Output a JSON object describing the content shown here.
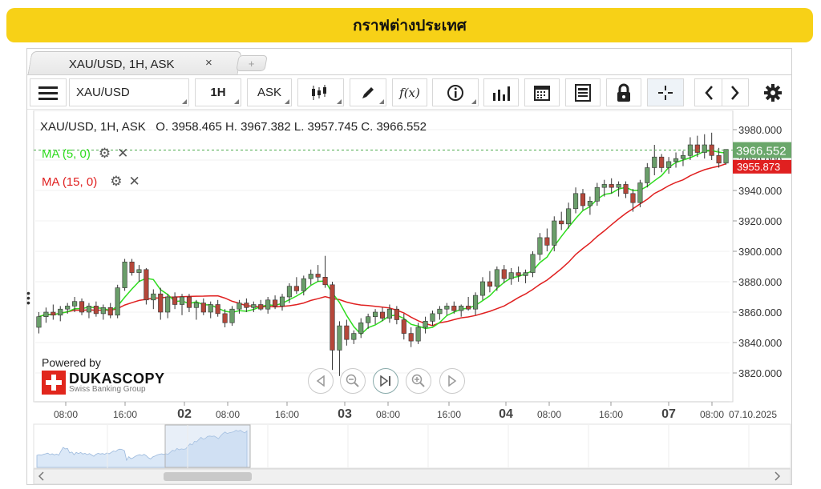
{
  "banner": {
    "title": "กราฟต่างประเทศ"
  },
  "tab": {
    "label": "XAU/USD, 1H, ASK",
    "close": "×",
    "add": "+"
  },
  "toolbar": {
    "symbol": "XAU/USD",
    "period": "1H",
    "side": "ASK",
    "fx_label": "f(x)"
  },
  "header": {
    "instrument": "XAU/USD, 1H, ASK",
    "ohlc": "O. 3958.465 H. 3967.382 L. 3957.745 C. 3966.552"
  },
  "indicators": [
    {
      "label": "MA (5, 0)",
      "color": "#2fdc1f"
    },
    {
      "label": "MA (15, 0)",
      "color": "#e02020"
    }
  ],
  "price_axis": [
    "3980.000",
    "3960.000",
    "3940.000",
    "3920.000",
    "3900.000",
    "3880.000",
    "3860.000",
    "3840.000",
    "3820.000"
  ],
  "current_price": "3966.552",
  "ma15_price": "3955.873",
  "time_axis": [
    {
      "label": "08:00",
      "bold": false
    },
    {
      "label": "16:00",
      "bold": false
    },
    {
      "label": "02",
      "bold": true
    },
    {
      "label": "08:00",
      "bold": false
    },
    {
      "label": "16:00",
      "bold": false
    },
    {
      "label": "03",
      "bold": true
    },
    {
      "label": "08:00",
      "bold": false
    },
    {
      "label": "16:00",
      "bold": false
    },
    {
      "label": "04",
      "bold": true
    },
    {
      "label": "08:00",
      "bold": false
    },
    {
      "label": "16:00",
      "bold": false
    },
    {
      "label": "07",
      "bold": true
    },
    {
      "label": "08:00",
      "bold": false
    }
  ],
  "date_label": "07.10.2025",
  "powered": {
    "by": "Powered by",
    "brand": "DUKASCOPY",
    "sub": "Swiss Banking Group"
  },
  "colors": {
    "up": "#6a9e6a",
    "down": "#b5473a",
    "ma5": "#2fdc1f",
    "ma15": "#e02020",
    "accent": "#f7d117"
  },
  "chart_data": {
    "type": "candlestick",
    "ylim": [
      3810,
      3990
    ],
    "candles": [
      {
        "o": 3850,
        "h": 3860,
        "l": 3846,
        "c": 3857
      },
      {
        "o": 3857,
        "h": 3863,
        "l": 3853,
        "c": 3860
      },
      {
        "o": 3860,
        "h": 3865,
        "l": 3855,
        "c": 3858
      },
      {
        "o": 3858,
        "h": 3864,
        "l": 3854,
        "c": 3862
      },
      {
        "o": 3862,
        "h": 3866,
        "l": 3859,
        "c": 3864
      },
      {
        "o": 3864,
        "h": 3870,
        "l": 3860,
        "c": 3867
      },
      {
        "o": 3867,
        "h": 3869,
        "l": 3858,
        "c": 3860
      },
      {
        "o": 3860,
        "h": 3866,
        "l": 3856,
        "c": 3864
      },
      {
        "o": 3864,
        "h": 3867,
        "l": 3857,
        "c": 3859
      },
      {
        "o": 3859,
        "h": 3865,
        "l": 3855,
        "c": 3863
      },
      {
        "o": 3863,
        "h": 3866,
        "l": 3856,
        "c": 3858
      },
      {
        "o": 3858,
        "h": 3878,
        "l": 3856,
        "c": 3876
      },
      {
        "o": 3876,
        "h": 3895,
        "l": 3874,
        "c": 3893
      },
      {
        "o": 3893,
        "h": 3895,
        "l": 3884,
        "c": 3886
      },
      {
        "o": 3886,
        "h": 3891,
        "l": 3880,
        "c": 3888
      },
      {
        "o": 3888,
        "h": 3889,
        "l": 3865,
        "c": 3868
      },
      {
        "o": 3868,
        "h": 3875,
        "l": 3862,
        "c": 3872
      },
      {
        "o": 3872,
        "h": 3876,
        "l": 3855,
        "c": 3860
      },
      {
        "o": 3860,
        "h": 3872,
        "l": 3856,
        "c": 3870
      },
      {
        "o": 3870,
        "h": 3873,
        "l": 3862,
        "c": 3865
      },
      {
        "o": 3865,
        "h": 3872,
        "l": 3858,
        "c": 3870
      },
      {
        "o": 3870,
        "h": 3872,
        "l": 3860,
        "c": 3863
      },
      {
        "o": 3863,
        "h": 3868,
        "l": 3855,
        "c": 3866
      },
      {
        "o": 3866,
        "h": 3869,
        "l": 3858,
        "c": 3860
      },
      {
        "o": 3860,
        "h": 3867,
        "l": 3856,
        "c": 3865
      },
      {
        "o": 3865,
        "h": 3868,
        "l": 3857,
        "c": 3859
      },
      {
        "o": 3859,
        "h": 3862,
        "l": 3850,
        "c": 3853
      },
      {
        "o": 3853,
        "h": 3864,
        "l": 3851,
        "c": 3862
      },
      {
        "o": 3862,
        "h": 3868,
        "l": 3859,
        "c": 3866
      },
      {
        "o": 3866,
        "h": 3869,
        "l": 3860,
        "c": 3863
      },
      {
        "o": 3863,
        "h": 3867,
        "l": 3860,
        "c": 3865
      },
      {
        "o": 3865,
        "h": 3868,
        "l": 3861,
        "c": 3862
      },
      {
        "o": 3862,
        "h": 3870,
        "l": 3859,
        "c": 3868
      },
      {
        "o": 3868,
        "h": 3871,
        "l": 3862,
        "c": 3864
      },
      {
        "o": 3864,
        "h": 3872,
        "l": 3861,
        "c": 3870
      },
      {
        "o": 3870,
        "h": 3879,
        "l": 3866,
        "c": 3877
      },
      {
        "o": 3877,
        "h": 3883,
        "l": 3872,
        "c": 3874
      },
      {
        "o": 3874,
        "h": 3884,
        "l": 3871,
        "c": 3882
      },
      {
        "o": 3882,
        "h": 3888,
        "l": 3878,
        "c": 3885
      },
      {
        "o": 3885,
        "h": 3891,
        "l": 3880,
        "c": 3883
      },
      {
        "o": 3883,
        "h": 3897,
        "l": 3876,
        "c": 3878
      },
      {
        "o": 3878,
        "h": 3880,
        "l": 3822,
        "c": 3835
      },
      {
        "o": 3835,
        "h": 3854,
        "l": 3818,
        "c": 3851
      },
      {
        "o": 3851,
        "h": 3855,
        "l": 3838,
        "c": 3842
      },
      {
        "o": 3842,
        "h": 3848,
        "l": 3839,
        "c": 3846
      },
      {
        "o": 3846,
        "h": 3856,
        "l": 3843,
        "c": 3853
      },
      {
        "o": 3853,
        "h": 3859,
        "l": 3849,
        "c": 3857
      },
      {
        "o": 3857,
        "h": 3862,
        "l": 3852,
        "c": 3860
      },
      {
        "o": 3860,
        "h": 3863,
        "l": 3854,
        "c": 3856
      },
      {
        "o": 3856,
        "h": 3865,
        "l": 3853,
        "c": 3862
      },
      {
        "o": 3862,
        "h": 3864,
        "l": 3852,
        "c": 3855
      },
      {
        "o": 3855,
        "h": 3859,
        "l": 3842,
        "c": 3846
      },
      {
        "o": 3846,
        "h": 3850,
        "l": 3837,
        "c": 3841
      },
      {
        "o": 3841,
        "h": 3853,
        "l": 3839,
        "c": 3850
      },
      {
        "o": 3850,
        "h": 3857,
        "l": 3846,
        "c": 3854
      },
      {
        "o": 3854,
        "h": 3861,
        "l": 3851,
        "c": 3859
      },
      {
        "o": 3859,
        "h": 3864,
        "l": 3855,
        "c": 3862
      },
      {
        "o": 3862,
        "h": 3866,
        "l": 3858,
        "c": 3864
      },
      {
        "o": 3864,
        "h": 3867,
        "l": 3859,
        "c": 3861
      },
      {
        "o": 3861,
        "h": 3865,
        "l": 3857,
        "c": 3864
      },
      {
        "o": 3864,
        "h": 3870,
        "l": 3861,
        "c": 3862
      },
      {
        "o": 3862,
        "h": 3873,
        "l": 3858,
        "c": 3871
      },
      {
        "o": 3871,
        "h": 3883,
        "l": 3868,
        "c": 3880
      },
      {
        "o": 3880,
        "h": 3887,
        "l": 3873,
        "c": 3877
      },
      {
        "o": 3877,
        "h": 3890,
        "l": 3874,
        "c": 3888
      },
      {
        "o": 3888,
        "h": 3891,
        "l": 3879,
        "c": 3882
      },
      {
        "o": 3882,
        "h": 3889,
        "l": 3878,
        "c": 3886
      },
      {
        "o": 3886,
        "h": 3890,
        "l": 3880,
        "c": 3884
      },
      {
        "o": 3884,
        "h": 3888,
        "l": 3879,
        "c": 3886
      },
      {
        "o": 3886,
        "h": 3900,
        "l": 3883,
        "c": 3898
      },
      {
        "o": 3898,
        "h": 3912,
        "l": 3894,
        "c": 3909
      },
      {
        "o": 3909,
        "h": 3915,
        "l": 3900,
        "c": 3904
      },
      {
        "o": 3904,
        "h": 3923,
        "l": 3900,
        "c": 3920
      },
      {
        "o": 3920,
        "h": 3926,
        "l": 3914,
        "c": 3918
      },
      {
        "o": 3918,
        "h": 3932,
        "l": 3915,
        "c": 3928
      },
      {
        "o": 3928,
        "h": 3942,
        "l": 3925,
        "c": 3938
      },
      {
        "o": 3938,
        "h": 3941,
        "l": 3927,
        "c": 3930
      },
      {
        "o": 3930,
        "h": 3936,
        "l": 3924,
        "c": 3933
      },
      {
        "o": 3933,
        "h": 3945,
        "l": 3930,
        "c": 3942
      },
      {
        "o": 3942,
        "h": 3947,
        "l": 3936,
        "c": 3944
      },
      {
        "o": 3944,
        "h": 3948,
        "l": 3938,
        "c": 3942
      },
      {
        "o": 3942,
        "h": 3946,
        "l": 3936,
        "c": 3944
      },
      {
        "o": 3944,
        "h": 3946,
        "l": 3935,
        "c": 3938
      },
      {
        "o": 3938,
        "h": 3941,
        "l": 3926,
        "c": 3932
      },
      {
        "o": 3932,
        "h": 3947,
        "l": 3929,
        "c": 3945
      },
      {
        "o": 3945,
        "h": 3958,
        "l": 3942,
        "c": 3955
      },
      {
        "o": 3955,
        "h": 3970,
        "l": 3950,
        "c": 3962
      },
      {
        "o": 3962,
        "h": 3964,
        "l": 3952,
        "c": 3955
      },
      {
        "o": 3955,
        "h": 3962,
        "l": 3951,
        "c": 3959
      },
      {
        "o": 3959,
        "h": 3965,
        "l": 3955,
        "c": 3961
      },
      {
        "o": 3961,
        "h": 3966,
        "l": 3956,
        "c": 3963
      },
      {
        "o": 3963,
        "h": 3975,
        "l": 3960,
        "c": 3970
      },
      {
        "o": 3970,
        "h": 3976,
        "l": 3962,
        "c": 3965
      },
      {
        "o": 3965,
        "h": 3977,
        "l": 3961,
        "c": 3970
      },
      {
        "o": 3970,
        "h": 3978,
        "l": 3960,
        "c": 3963
      },
      {
        "o": 3963,
        "h": 3968,
        "l": 3955,
        "c": 3958
      },
      {
        "o": 3958,
        "h": 3967,
        "l": 3957,
        "c": 3967
      }
    ]
  }
}
